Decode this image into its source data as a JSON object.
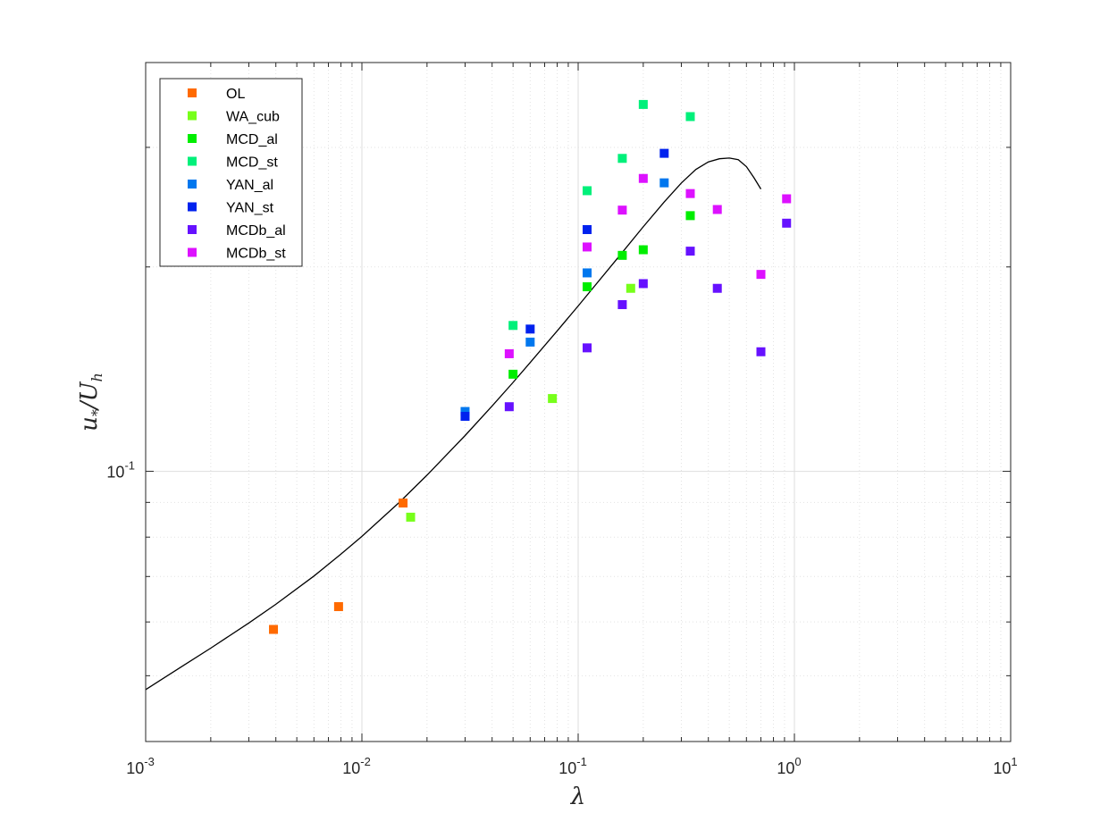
{
  "chart_data": {
    "type": "scatter",
    "title": "",
    "xlabel": "λ",
    "ylabel_parts": {
      "u": "u",
      "star": "*",
      "slash": "/U",
      "h": "h"
    },
    "x_scale": "log",
    "y_scale": "log",
    "xlim": [
      0.001,
      10
    ],
    "ylim": [
      0.04,
      0.4
    ],
    "grid": true,
    "legend_position": "top-left",
    "x_ticks": [
      {
        "base": "10",
        "exp": "-3",
        "value": 0.001
      },
      {
        "base": "10",
        "exp": "-2",
        "value": 0.01
      },
      {
        "base": "10",
        "exp": "-1",
        "value": 0.1
      },
      {
        "base": "10",
        "exp": "0",
        "value": 1
      },
      {
        "base": "10",
        "exp": "1",
        "value": 10
      }
    ],
    "y_ticks": [
      {
        "base": "10",
        "exp": "-1",
        "value": 0.1
      }
    ],
    "series": [
      {
        "name": "OL",
        "color": "#ff6a00",
        "marker": "square",
        "points": [
          [
            0.0039,
            0.0585
          ],
          [
            0.0078,
            0.0632
          ],
          [
            0.0155,
            0.0898
          ]
        ]
      },
      {
        "name": "WA_cub",
        "color": "#77ff1a",
        "marker": "square",
        "points": [
          [
            0.0168,
            0.0856
          ],
          [
            0.076,
            0.128
          ],
          [
            0.175,
            0.186
          ]
        ]
      },
      {
        "name": "MCD_al",
        "color": "#00ee00",
        "marker": "square",
        "points": [
          [
            0.05,
            0.139
          ],
          [
            0.11,
            0.187
          ],
          [
            0.16,
            0.208
          ],
          [
            0.2,
            0.212
          ],
          [
            0.33,
            0.238
          ]
        ]
      },
      {
        "name": "MCD_st",
        "color": "#00f07a",
        "marker": "square",
        "points": [
          [
            0.05,
            0.164
          ],
          [
            0.11,
            0.259
          ],
          [
            0.16,
            0.289
          ],
          [
            0.2,
            0.347
          ],
          [
            0.33,
            0.333
          ]
        ]
      },
      {
        "name": "YAN_al",
        "color": "#0077ee",
        "marker": "square",
        "points": [
          [
            0.03,
            0.1225
          ],
          [
            0.06,
            0.155
          ],
          [
            0.11,
            0.196
          ],
          [
            0.25,
            0.266
          ]
        ]
      },
      {
        "name": "YAN_st",
        "color": "#0022ee",
        "marker": "square",
        "points": [
          [
            0.03,
            0.1205
          ],
          [
            0.06,
            0.162
          ],
          [
            0.11,
            0.227
          ],
          [
            0.25,
            0.294
          ]
        ]
      },
      {
        "name": "MCDb_al",
        "color": "#6611ff",
        "marker": "square",
        "points": [
          [
            0.048,
            0.1245
          ],
          [
            0.11,
            0.152
          ],
          [
            0.16,
            0.176
          ],
          [
            0.2,
            0.189
          ],
          [
            0.33,
            0.211
          ],
          [
            0.44,
            0.186
          ],
          [
            0.7,
            0.15
          ],
          [
            0.92,
            0.232
          ]
        ]
      },
      {
        "name": "MCDb_st",
        "color": "#dd11ff",
        "marker": "square",
        "points": [
          [
            0.048,
            0.149
          ],
          [
            0.11,
            0.214
          ],
          [
            0.16,
            0.2425
          ],
          [
            0.2,
            0.27
          ],
          [
            0.33,
            0.2565
          ],
          [
            0.44,
            0.243
          ],
          [
            0.7,
            0.195
          ],
          [
            0.92,
            0.252
          ]
        ]
      }
    ],
    "model_curve": {
      "color": "#000000",
      "points": [
        [
          0.001,
          0.0477
        ],
        [
          0.0015,
          0.0518
        ],
        [
          0.002,
          0.0549
        ],
        [
          0.003,
          0.0598
        ],
        [
          0.004,
          0.0637
        ],
        [
          0.006,
          0.0701
        ],
        [
          0.008,
          0.0755
        ],
        [
          0.01,
          0.0802
        ],
        [
          0.015,
          0.0902
        ],
        [
          0.02,
          0.0987
        ],
        [
          0.03,
          0.1129
        ],
        [
          0.04,
          0.1248
        ],
        [
          0.05,
          0.1352
        ],
        [
          0.06,
          0.1446
        ],
        [
          0.08,
          0.161
        ],
        [
          0.1,
          0.1752
        ],
        [
          0.15,
          0.2049
        ],
        [
          0.2,
          0.2291
        ],
        [
          0.25,
          0.2493
        ],
        [
          0.3,
          0.2659
        ],
        [
          0.35,
          0.2783
        ],
        [
          0.4,
          0.2856
        ],
        [
          0.45,
          0.2886
        ],
        [
          0.5,
          0.2893
        ],
        [
          0.55,
          0.2878
        ],
        [
          0.6,
          0.281
        ],
        [
          0.65,
          0.2707
        ],
        [
          0.7,
          0.2605
        ]
      ]
    }
  }
}
